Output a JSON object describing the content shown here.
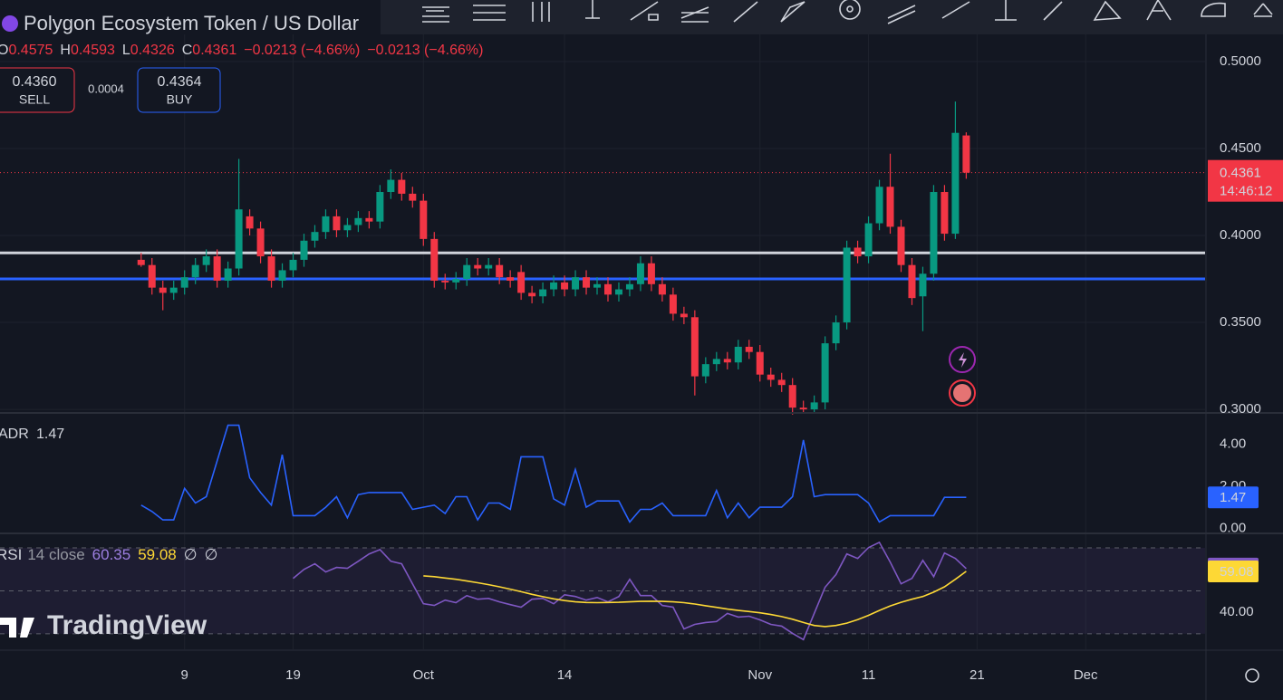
{
  "header": {
    "title": "Polygon Ecosystem Token / US Dollar",
    "ohlc_labels": [
      "O",
      "H",
      "L",
      "C"
    ],
    "change": "−0.0213 (−4.66%)",
    "sell_price": "0.4360",
    "sell_label": "SELL",
    "spread": "0.0004",
    "buy_price": "0.4364",
    "buy_label": "BUY",
    "countdown": "14:46:12",
    "watermark": "TradingView"
  },
  "chart_data": [
    {
      "type": "candlestick",
      "up_color": "#089981",
      "down_color": "#f23645",
      "xlim": [
        -13,
        98
      ],
      "xticks": [
        {
          "value": 4,
          "label": "9"
        },
        {
          "value": 14,
          "label": "19"
        },
        {
          "value": 26,
          "label": "Oct"
        },
        {
          "value": 39,
          "label": "14"
        },
        {
          "value": 57,
          "label": "Nov"
        },
        {
          "value": 67,
          "label": "11"
        },
        {
          "value": 77,
          "label": "21"
        },
        {
          "value": 87,
          "label": "Dec"
        }
      ],
      "ylim": [
        0.299,
        0.5156
      ],
      "yticks": [
        {
          "value": 0.3,
          "label": "0.3000"
        },
        {
          "value": 0.35,
          "label": "0.3500"
        },
        {
          "value": 0.4,
          "label": "0.4000"
        },
        {
          "value": 0.45,
          "label": "0.4500"
        },
        {
          "value": 0.5,
          "label": "0.5000"
        }
      ],
      "hlines": [
        {
          "value": 0.39,
          "color": "#d1d4dc"
        },
        {
          "value": 0.375,
          "color": "#2962ff"
        }
      ],
      "open": [
        0.386,
        0.383,
        0.37,
        0.367,
        0.37,
        0.376,
        0.383,
        0.388,
        0.374,
        0.381,
        0.411,
        0.404,
        0.388,
        0.374,
        0.38,
        0.386,
        0.397,
        0.402,
        0.411,
        0.403,
        0.406,
        0.41,
        0.408,
        0.425,
        0.432,
        0.424,
        0.42,
        0.398,
        0.374,
        0.373,
        0.375,
        0.383,
        0.381,
        0.383,
        0.376,
        0.379,
        0.367,
        0.365,
        0.369,
        0.373,
        0.369,
        0.376,
        0.37,
        0.372,
        0.366,
        0.369,
        0.372,
        0.384,
        0.372,
        0.366,
        0.355,
        0.353,
        0.319,
        0.326,
        0.329,
        0.327,
        0.336,
        0.333,
        0.32,
        0.317,
        0.314,
        0.301,
        0.3,
        0.304,
        0.338,
        0.35,
        0.393,
        0.388,
        0.407,
        0.428,
        0.405,
        0.383,
        0.365,
        0.378,
        0.425,
        0.401,
        0.4575
      ],
      "high": [
        0.39,
        0.387,
        0.374,
        0.374,
        0.38,
        0.387,
        0.392,
        0.392,
        0.385,
        0.444,
        0.415,
        0.408,
        0.392,
        0.384,
        0.39,
        0.401,
        0.406,
        0.415,
        0.415,
        0.41,
        0.414,
        0.414,
        0.429,
        0.438,
        0.436,
        0.428,
        0.424,
        0.402,
        0.378,
        0.379,
        0.387,
        0.387,
        0.387,
        0.387,
        0.38,
        0.383,
        0.371,
        0.373,
        0.377,
        0.377,
        0.38,
        0.38,
        0.376,
        0.376,
        0.373,
        0.376,
        0.388,
        0.388,
        0.376,
        0.37,
        0.359,
        0.357,
        0.33,
        0.333,
        0.333,
        0.34,
        0.34,
        0.337,
        0.324,
        0.321,
        0.318,
        0.305,
        0.308,
        0.342,
        0.354,
        0.397,
        0.397,
        0.411,
        0.432,
        0.447,
        0.409,
        0.387,
        0.382,
        0.429,
        0.429,
        0.477,
        0.4593
      ],
      "low": [
        0.382,
        0.366,
        0.357,
        0.363,
        0.366,
        0.372,
        0.379,
        0.37,
        0.37,
        0.377,
        0.4,
        0.384,
        0.37,
        0.37,
        0.376,
        0.382,
        0.393,
        0.398,
        0.399,
        0.399,
        0.402,
        0.404,
        0.404,
        0.421,
        0.42,
        0.416,
        0.394,
        0.37,
        0.369,
        0.369,
        0.371,
        0.377,
        0.377,
        0.372,
        0.37,
        0.363,
        0.361,
        0.361,
        0.365,
        0.365,
        0.365,
        0.366,
        0.366,
        0.362,
        0.362,
        0.365,
        0.368,
        0.368,
        0.362,
        0.351,
        0.349,
        0.308,
        0.315,
        0.322,
        0.323,
        0.323,
        0.329,
        0.316,
        0.313,
        0.31,
        0.297,
        0.298,
        0.298,
        0.3,
        0.334,
        0.346,
        0.384,
        0.384,
        0.403,
        0.401,
        0.379,
        0.36,
        0.345,
        0.374,
        0.397,
        0.398,
        0.4326
      ],
      "close": [
        0.383,
        0.37,
        0.367,
        0.37,
        0.376,
        0.383,
        0.388,
        0.374,
        0.381,
        0.415,
        0.404,
        0.388,
        0.374,
        0.38,
        0.386,
        0.397,
        0.402,
        0.411,
        0.403,
        0.406,
        0.41,
        0.408,
        0.425,
        0.432,
        0.424,
        0.42,
        0.398,
        0.374,
        0.373,
        0.375,
        0.383,
        0.381,
        0.383,
        0.376,
        0.374,
        0.367,
        0.365,
        0.369,
        0.373,
        0.369,
        0.376,
        0.37,
        0.372,
        0.366,
        0.369,
        0.372,
        0.384,
        0.372,
        0.366,
        0.355,
        0.353,
        0.319,
        0.326,
        0.329,
        0.327,
        0.336,
        0.333,
        0.32,
        0.317,
        0.314,
        0.301,
        0.3,
        0.304,
        0.338,
        0.35,
        0.393,
        0.388,
        0.407,
        0.428,
        0.405,
        0.383,
        0.364,
        0.378,
        0.425,
        0.401,
        0.459,
        0.4361
      ]
    },
    {
      "type": "line",
      "ylim": [
        -0.2,
        5.4
      ],
      "yticks": [
        {
          "value": 0,
          "label": "0.00"
        },
        {
          "value": 2,
          "label": "2.00"
        },
        {
          "value": 4,
          "label": "4.00"
        }
      ],
      "series": [
        {
          "name": "ADR",
          "color": "#2962ff",
          "values": [
            1.1,
            0.8,
            0.4,
            0.4,
            1.9,
            1.2,
            1.5,
            3.2,
            4.9,
            4.9,
            2.4,
            1.7,
            1.1,
            3.5,
            0.6,
            0.6,
            0.6,
            1.0,
            1.5,
            0.5,
            1.6,
            1.7,
            1.7,
            1.7,
            1.7,
            0.9,
            1.0,
            1.1,
            0.7,
            1.5,
            1.5,
            0.4,
            1.2,
            1.2,
            0.9,
            3.4,
            3.4,
            3.4,
            1.4,
            1.1,
            2.8,
            1.0,
            1.3,
            1.3,
            1.3,
            0.3,
            0.9,
            0.9,
            1.2,
            0.6,
            0.6,
            0.6,
            0.6,
            1.8,
            0.5,
            1.2,
            0.5,
            1.0,
            1.0,
            1.0,
            1.5,
            4.2,
            1.5,
            1.6,
            1.6,
            1.6,
            1.6,
            1.2,
            0.3,
            0.6,
            0.6,
            0.6,
            0.6,
            0.6,
            1.47,
            1.47,
            1.47
          ]
        }
      ]
    },
    {
      "type": "line",
      "ylim": [
        22.8,
        75.5
      ],
      "yticks": [
        {
          "value": 40,
          "label": "40.00"
        }
      ],
      "bands": [
        70,
        50,
        30
      ],
      "params": "14 close",
      "extras": [
        "∅",
        "∅"
      ],
      "series": [
        {
          "name": "RSI",
          "color": "#7e57c2",
          "values": [
            null,
            null,
            null,
            null,
            null,
            null,
            null,
            null,
            null,
            null,
            null,
            null,
            null,
            null,
            55.8,
            60.0,
            62.6,
            58.8,
            60.9,
            60.5,
            63.8,
            67.2,
            69.2,
            63.8,
            62.6,
            53.3,
            44.0,
            43.2,
            45.7,
            44.5,
            47.8,
            46.1,
            46.5,
            44.9,
            43.6,
            42.4,
            46.1,
            46.5,
            44.0,
            48.2,
            47.4,
            45.7,
            46.9,
            44.9,
            47.4,
            55.4,
            47.8,
            47.8,
            43.2,
            42.4,
            32.3,
            34.4,
            35.3,
            35.7,
            39.5,
            37.8,
            38.2,
            36.5,
            34.4,
            33.6,
            30.2,
            27.3,
            39.5,
            51.7,
            57.6,
            67.2,
            65.1,
            70.2,
            72.6,
            63.4,
            53.3,
            55.8,
            64.2,
            56.6,
            67.6,
            65.1,
            60.35
          ]
        },
        {
          "color": "#fdd835",
          "values": [
            null,
            null,
            null,
            null,
            null,
            null,
            null,
            null,
            null,
            null,
            null,
            null,
            null,
            null,
            null,
            null,
            null,
            null,
            null,
            null,
            null,
            null,
            null,
            null,
            null,
            null,
            57.0,
            56.6,
            56.0,
            55.4,
            54.6,
            53.8,
            52.9,
            51.9,
            50.8,
            49.6,
            48.4,
            47.3,
            46.3,
            45.5,
            44.9,
            44.6,
            44.5,
            44.6,
            44.7,
            44.9,
            45.1,
            45.2,
            45.1,
            44.9,
            44.5,
            43.9,
            43.1,
            42.3,
            41.5,
            40.9,
            40.4,
            39.8,
            39.0,
            38.0,
            36.8,
            35.3,
            33.9,
            33.4,
            33.9,
            35.0,
            36.6,
            38.6,
            40.9,
            43.0,
            44.7,
            46.1,
            47.4,
            49.4,
            51.9,
            55.4,
            59.08
          ]
        }
      ]
    }
  ]
}
